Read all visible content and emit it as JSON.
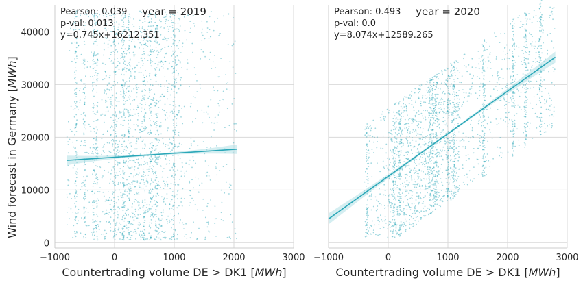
{
  "chart_data": [
    {
      "type": "scatter",
      "title": "year = 2019",
      "xlabel": "Countertrading volume DE > DK1 [MWh]",
      "ylabel": "Wind forecast in Germany [MWh]",
      "xlim": [
        -1000,
        3000
      ],
      "ylim": [
        -1000,
        45000
      ],
      "xticks": [
        -1000,
        0,
        1000,
        2000,
        3000
      ],
      "yticks": [
        0,
        10000,
        20000,
        30000,
        40000
      ],
      "grid": true,
      "legend": "none",
      "stats": {
        "pearson": "Pearson: 0.039",
        "pval": "p-val: 0.013",
        "equation": "y=0.745x+16212.351"
      },
      "regression": {
        "slope": 0.745,
        "intercept": 16212.351,
        "x_range": [
          -800,
          2050
        ]
      },
      "colors": {
        "points": "#2aa7b8",
        "line": "#2aa7b8",
        "band": "#a9dde4"
      },
      "points_summary": {
        "x_range": [
          -800,
          2050
        ],
        "y_range": [
          200,
          44000
        ],
        "vertical_bands_x": [
          -650,
          -500,
          -350,
          -300,
          0,
          150,
          250,
          500,
          600,
          700,
          1000
        ]
      }
    },
    {
      "type": "scatter",
      "title": "year = 2020",
      "xlabel": "Countertrading volume DE > DK1 [MWh]",
      "ylabel": "",
      "xlim": [
        -1000,
        3000
      ],
      "ylim": [
        -1000,
        45000
      ],
      "xticks": [
        -1000,
        0,
        1000,
        2000,
        3000
      ],
      "yticks": [
        0,
        10000,
        20000,
        30000,
        40000
      ],
      "grid": true,
      "legend": "none",
      "stats": {
        "pearson": "Pearson: 0.493",
        "pval": "p-val: 0.0",
        "equation": "y=8.074x+12589.265"
      },
      "regression": {
        "slope": 8.074,
        "intercept": 12589.265,
        "x_range": [
          -1000,
          2800
        ]
      },
      "colors": {
        "points": "#2aa7b8",
        "line": "#2aa7b8",
        "band": "#a9dde4"
      },
      "points_summary": {
        "x_range": [
          -400,
          2800
        ],
        "y_range": [
          1000,
          47000
        ],
        "vertical_bands_x": [
          -350,
          100,
          200,
          700,
          750,
          800,
          1000,
          1100,
          1600,
          2100,
          2300,
          2550
        ]
      }
    }
  ],
  "labels": {
    "xlabel_text": "Countertrading volume DE > DK1 [",
    "xlabel_unit": "MWh",
    "xlabel_close": "]",
    "ylabel_text": "Wind forecast in Germany [",
    "ylabel_unit": "MWh",
    "ylabel_close": "]"
  }
}
